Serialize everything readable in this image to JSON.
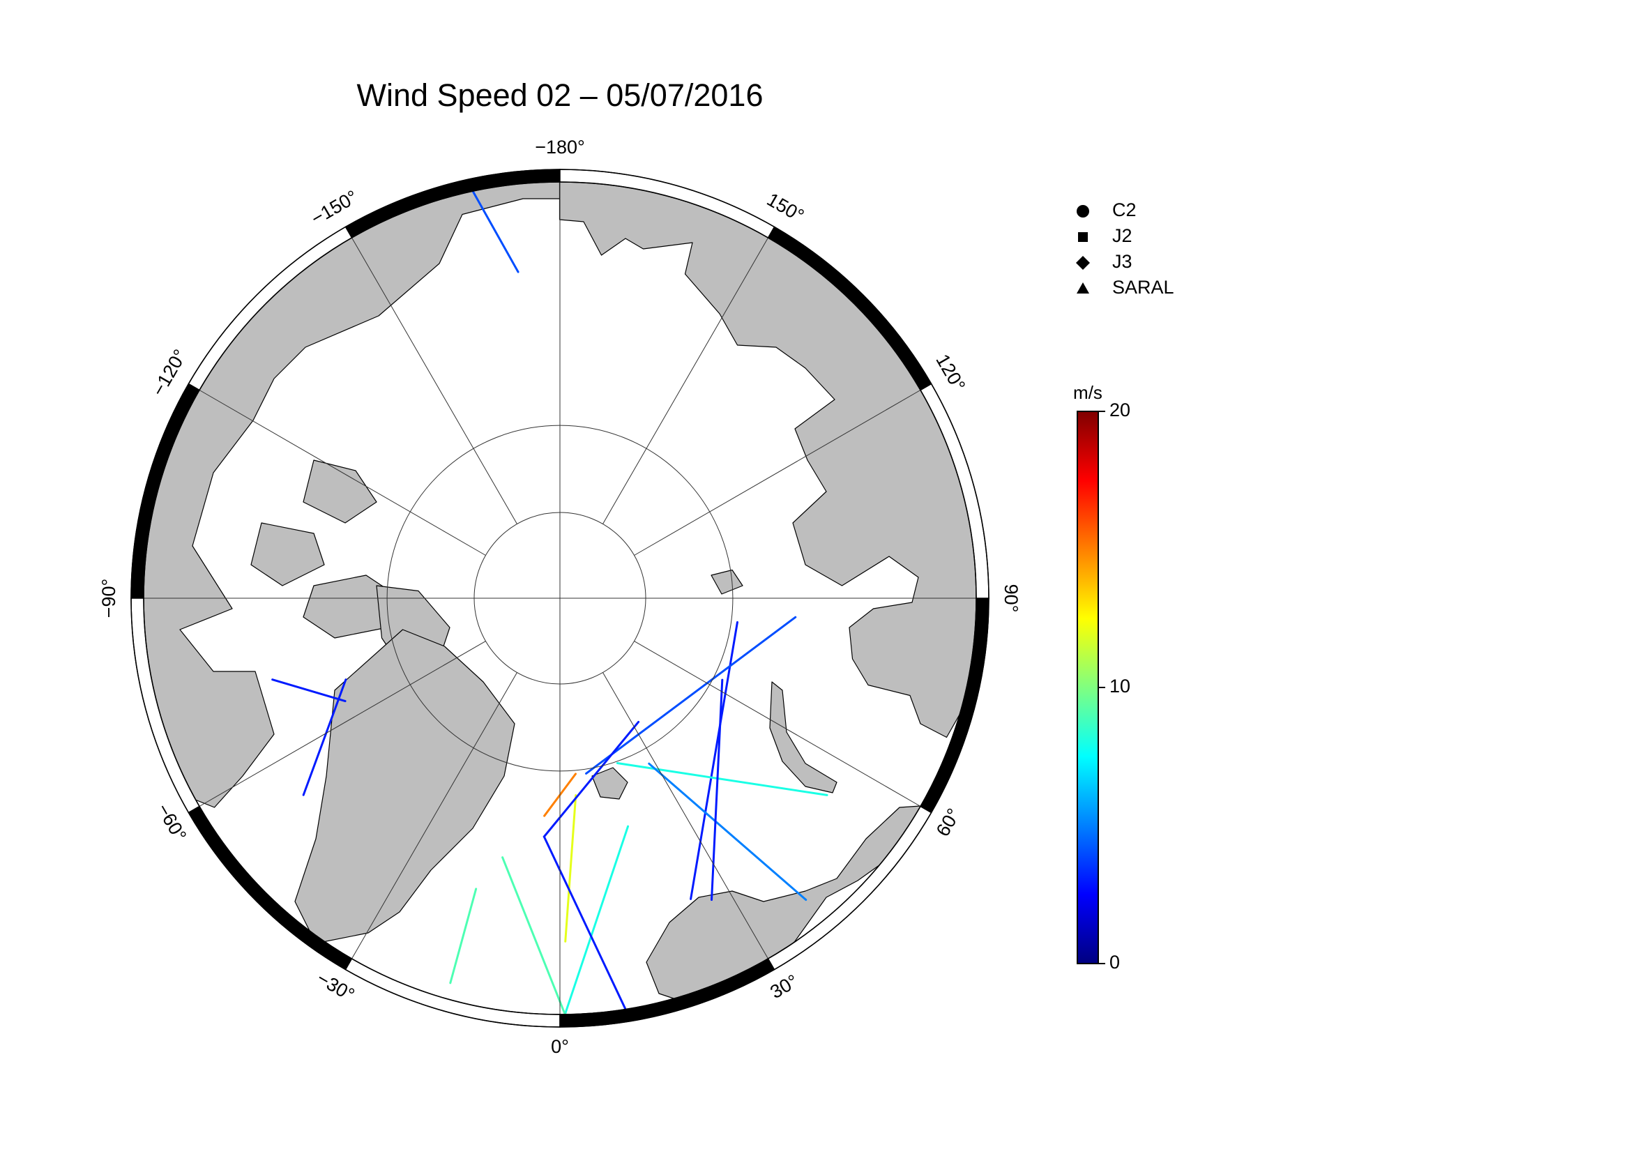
{
  "map": {
    "title": "Wind Speed 02 – 05/07/2016",
    "projection": "north-polar-stereographic",
    "lon_ticks": [
      {
        "value": -180,
        "label": "−180°"
      },
      {
        "value": -150,
        "label": "−150°"
      },
      {
        "value": -120,
        "label": "−120°"
      },
      {
        "value": -90,
        "label": "−90°"
      },
      {
        "value": -60,
        "label": "−60°"
      },
      {
        "value": -30,
        "label": "−30°"
      },
      {
        "value": 0,
        "label": "0°"
      },
      {
        "value": 30,
        "label": "30°"
      },
      {
        "value": 60,
        "label": "60°"
      },
      {
        "value": 90,
        "label": "90°"
      },
      {
        "value": 120,
        "label": "120°"
      },
      {
        "value": 150,
        "label": "150°"
      }
    ],
    "lat_circles": [
      80,
      70
    ],
    "legend": [
      {
        "name": "C2",
        "shape": "circle"
      },
      {
        "name": "J2",
        "shape": "square"
      },
      {
        "name": "J3",
        "shape": "diamond"
      },
      {
        "name": "SARAL",
        "shape": "triangle"
      }
    ],
    "colorbar": {
      "label": "m/s",
      "lim": [
        0,
        20
      ],
      "ticks": [
        0,
        10,
        20
      ],
      "colormap": "jet"
    },
    "tracks": [
      {
        "start": [
          5.1,
          69.6
        ],
        "end": [
          -4.1,
          64.9
        ],
        "speed": 15
      },
      {
        "start": [
          4.6,
          67.2
        ],
        "end": [
          0.9,
          51.4
        ],
        "speed": 12
      },
      {
        "start": [
          16.6,
          62.7
        ],
        "end": [
          0.7,
          44.0
        ],
        "speed": 8
      },
      {
        "start": [
          -3.8,
          62.6
        ],
        "end": [
          9.3,
          43.4
        ],
        "speed": 3
      },
      {
        "start": [
          82.3,
          69.3
        ],
        "end": [
          23.5,
          53.0
        ],
        "speed": 3
      },
      {
        "start": [
          85.4,
          62.9
        ],
        "end": [
          8.5,
          69.5
        ],
        "speed": 4
      },
      {
        "start": [
          19.2,
          69.8
        ],
        "end": [
          53.6,
          52.6
        ],
        "speed": 8
      },
      {
        "start": [
          -12.5,
          59.7
        ],
        "end": [
          0.7,
          44.0
        ],
        "speed": 9
      },
      {
        "start": [
          -74.2,
          56.1
        ],
        "end": [
          -64.4,
          62.7
        ],
        "speed": 3
      },
      {
        "start": [
          -52.5,
          53.5
        ],
        "end": [
          -69.2,
          63.7
        ],
        "speed": 3
      },
      {
        "start": [
          28.3,
          68.3
        ],
        "end": [
          39.2,
          46.7
        ],
        "speed": 5
      },
      {
        "start": [
          -167.8,
          43.7
        ],
        "end": [
          -172.7,
          52.9
        ],
        "speed": 4
      },
      {
        "start": [
          63.3,
          69.0
        ],
        "end": [
          26.7,
          52.0
        ],
        "speed": 3
      },
      {
        "start": [
          -16.1,
          55.7
        ],
        "end": [
          -15.9,
          45.6
        ],
        "speed": 9
      },
      {
        "start": [
          32.4,
          73.0
        ],
        "end": [
          -3.8,
          62.6
        ],
        "speed": 3
      }
    ]
  }
}
